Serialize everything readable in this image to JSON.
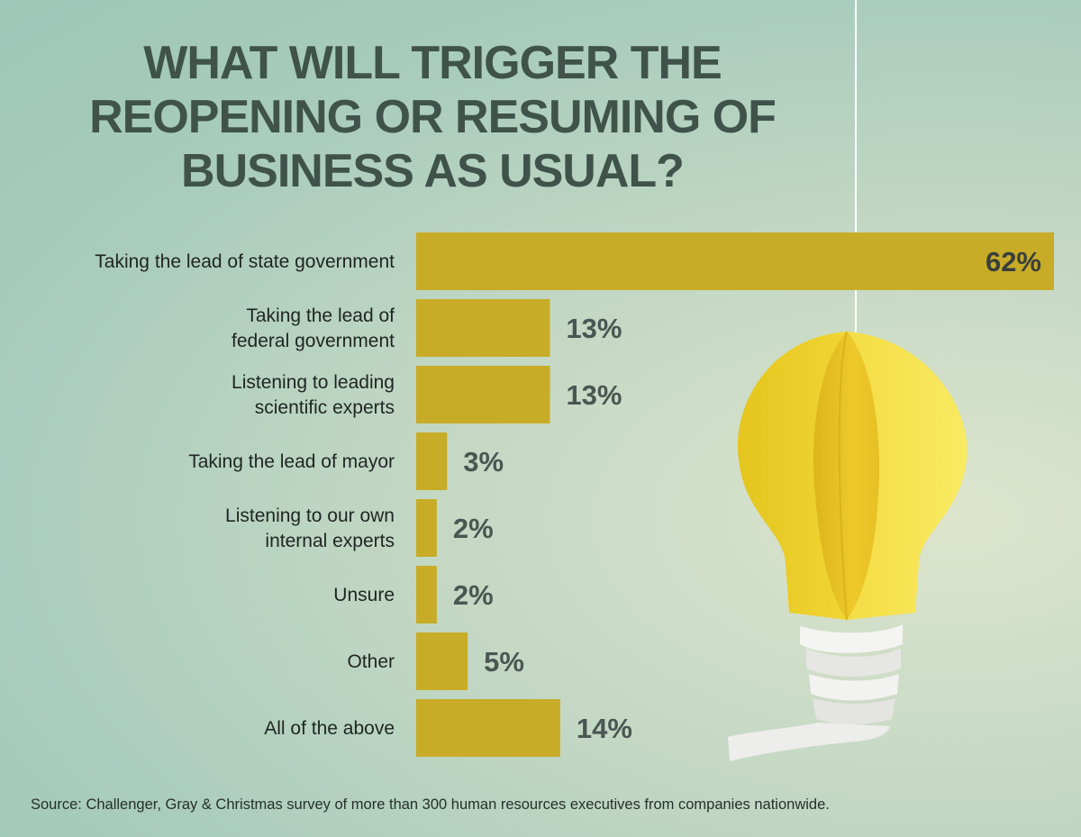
{
  "title": "WHAT WILL TRIGGER THE\nREOPENING OR RESUMING OF\nBUSINESS AS USUAL?",
  "source": "Source: Challenger, Gray & Christmas survey of more than 300 human resources executives from companies nationwide.",
  "colors": {
    "bar": "#c8ac27",
    "title": "#3f534b",
    "bulb": "#f3dc3e"
  },
  "icons": {
    "decoration": "lightbulb-icon"
  },
  "chart_data": {
    "type": "bar",
    "orientation": "horizontal",
    "unit": "%",
    "categories": [
      "Taking the lead of state government",
      "Taking the lead of\nfederal government",
      "Listening to leading\nscientific experts",
      "Taking the lead of mayor",
      "Listening to our own\ninternal experts",
      "Unsure",
      "Other",
      "All of the above"
    ],
    "values": [
      62,
      13,
      13,
      3,
      2,
      2,
      5,
      14
    ],
    "data_labels": [
      "62%",
      "13%",
      "13%",
      "3%",
      "2%",
      "2%",
      "5%",
      "14%"
    ],
    "xlim": [
      0,
      62
    ],
    "grid": false,
    "legend": "none"
  }
}
